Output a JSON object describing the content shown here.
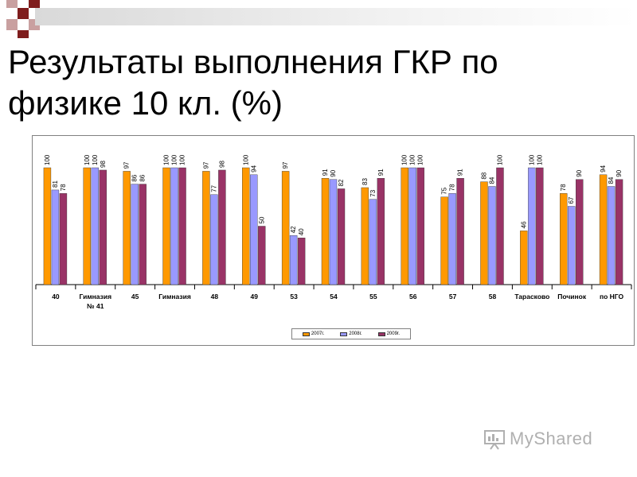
{
  "slide": {
    "title_line1": "Результаты выполнения ГКР по",
    "title_line2": "физике 10 кл. (%)",
    "watermark": "MyShared"
  },
  "colors": {
    "deco_dark": "#7f1d1d",
    "deco_light": "#c9a0a0"
  },
  "chart_data": {
    "type": "bar",
    "categories": [
      "40",
      "Гимназия № 41",
      "45",
      "Гимназия",
      "48",
      "49",
      "53",
      "54",
      "55",
      "56",
      "57",
      "58",
      "Тарасково",
      "Починок",
      "по НГО"
    ],
    "series": [
      {
        "name": "2007г.",
        "color": "#ff9900",
        "values": [
          100,
          100,
          97,
          100,
          97,
          100,
          97,
          91,
          83,
          100,
          75,
          88,
          46,
          78,
          94
        ]
      },
      {
        "name": "2008г.",
        "color": "#9999ff",
        "values": [
          81,
          100,
          86,
          100,
          77,
          94,
          42,
          90,
          73,
          100,
          78,
          84,
          100,
          67,
          84
        ]
      },
      {
        "name": "2009г.",
        "color": "#993366",
        "values": [
          78,
          98,
          86,
          100,
          98,
          50,
          40,
          82,
          91,
          100,
          91,
          100,
          100,
          90,
          90
        ]
      }
    ],
    "ylim": [
      0,
      100
    ],
    "grid": false,
    "legend_position": "bottom"
  }
}
